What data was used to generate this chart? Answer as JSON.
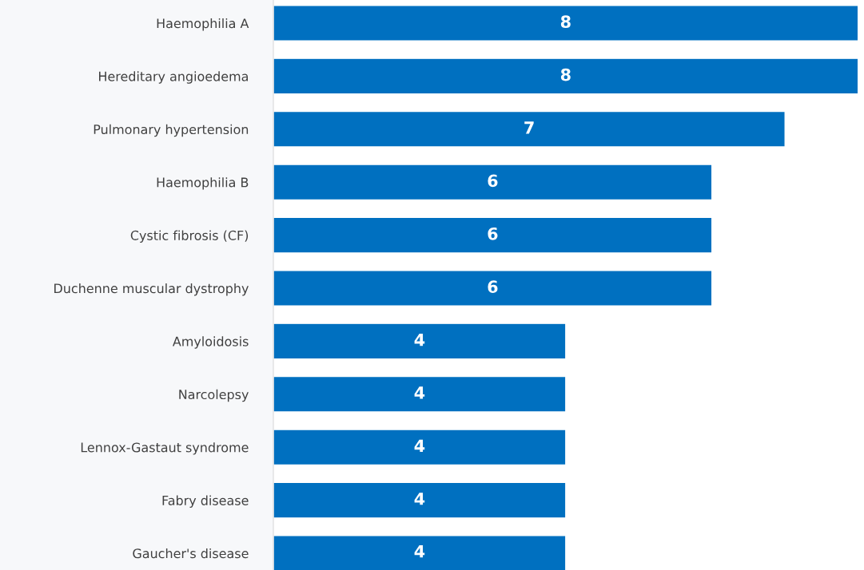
{
  "chart_data": {
    "type": "bar",
    "orientation": "horizontal",
    "categories": [
      "Haemophilia A",
      "Hereditary angioedema",
      "Pulmonary hypertension",
      "Haemophilia B",
      "Cystic fibrosis (CF)",
      "Duchenne muscular dystrophy",
      "Amyloidosis",
      "Narcolepsy",
      "Lennox-Gastaut syndrome",
      "Fabry disease",
      "Gaucher's disease"
    ],
    "values": [
      8,
      8,
      7,
      6,
      6,
      6,
      4,
      4,
      4,
      4,
      4
    ],
    "color": "#0070c0",
    "data_labels": true,
    "grid": false,
    "legend": false
  }
}
